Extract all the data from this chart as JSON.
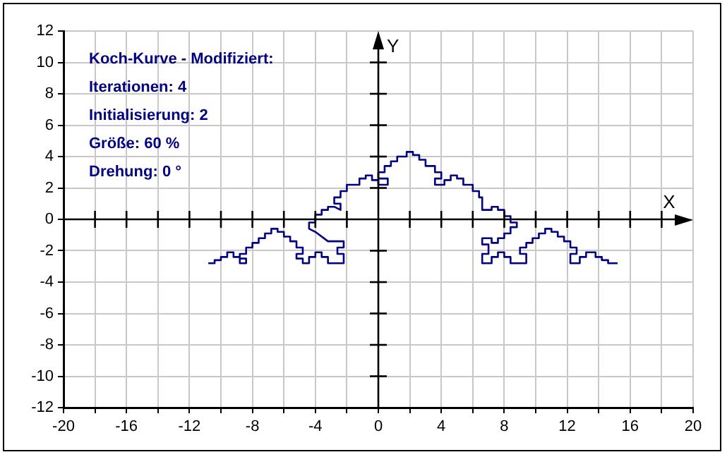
{
  "chart_data": {
    "type": "line",
    "title": "Koch-Kurve - Modifiziert:",
    "xlabel": "X",
    "ylabel": "Y",
    "annotations": [
      "Iterationen: 4",
      "Initialisierung: 2",
      "Größe: 60 %",
      "Drehung: 0 °"
    ],
    "series": [
      {
        "color": "#000080",
        "x": [
          -10.8,
          -10.4,
          -10.4,
          -10,
          -10,
          -9.6,
          -9.6,
          -9.2,
          -9.2,
          -8.8,
          -8.8,
          -8.4,
          -8.4,
          -8.8,
          -8.8,
          -8.4,
          -8.4,
          -8,
          -8,
          -7.6,
          -7.6,
          -7.2,
          -7.2,
          -6.8,
          -6.8,
          -6.4,
          -6.4,
          -6,
          -6,
          -5.6,
          -5.6,
          -5.2,
          -5.2,
          -4.8,
          -4.8,
          -5.2,
          -5.2,
          -4.8,
          -4.8,
          -4.4,
          -4.4,
          -4,
          -4,
          -3.6,
          -3.6,
          -3.2,
          -3.2,
          -2.2,
          -2.2,
          -2.6,
          -2.6,
          -2.2,
          -2.2,
          -3.2,
          -4,
          -4.4,
          -4.4,
          -4,
          -4,
          -3.6,
          -3.6,
          -3.2,
          -3.2,
          -2.8,
          -2.4,
          -2.4,
          -2.8,
          -2.8,
          -2.4,
          -2.4,
          -2,
          -2,
          -1.2,
          -1.2,
          -0.8,
          -0.8,
          -0.4,
          -0.4,
          0,
          0,
          0.6,
          0.6,
          0,
          0,
          0.4,
          0.4,
          0.8,
          0.8,
          1.2,
          1.2,
          1.8,
          1.8,
          2.2,
          2.2,
          2.6,
          2.6,
          3,
          3,
          3.6,
          3.6,
          4,
          4,
          3.6,
          3.6,
          4.2,
          4.2,
          4.6,
          4.6,
          5,
          5,
          5.4,
          5.4,
          6,
          6,
          6.4,
          6.4,
          6.6,
          6.6,
          7.2,
          7.2,
          7.6,
          7.6,
          8,
          8,
          8.4,
          8.4,
          8.8,
          8.8,
          8.4,
          8.4,
          8,
          8,
          7.6,
          7.6,
          7.2,
          7.2,
          6.6,
          6.6,
          7,
          7,
          6.6,
          6.6,
          7.2,
          7.2,
          7.6,
          7.6,
          8,
          8,
          8.4,
          8.4,
          9.4,
          9.4,
          9,
          9,
          9.4,
          9.4,
          9.8,
          9.8,
          10.2,
          10.2,
          10.6,
          10.6,
          11,
          11,
          11.4,
          11.4,
          11.8,
          11.8,
          12.2,
          12.2,
          12.6,
          12.6,
          12.2,
          12.2,
          12.8,
          12.8,
          13.2,
          13.2,
          13.8,
          13.8,
          14.2,
          14.2,
          14.6,
          14.6,
          15.2
        ],
        "values": [
          -2.8,
          -2.8,
          -2.6,
          -2.6,
          -2.4,
          -2.4,
          -2.1,
          -2.1,
          -2.4,
          -2.4,
          -2.8,
          -2.8,
          -2.5,
          -2.5,
          -2.2,
          -2.2,
          -1.8,
          -1.8,
          -1.5,
          -1.5,
          -1.2,
          -1.2,
          -0.9,
          -0.9,
          -0.6,
          -0.6,
          -0.8,
          -0.8,
          -1.1,
          -1.1,
          -1.4,
          -1.4,
          -1.8,
          -1.8,
          -2.2,
          -2.2,
          -2.5,
          -2.5,
          -2.8,
          -2.8,
          -2.4,
          -2.4,
          -2.1,
          -2.1,
          -2.4,
          -2.4,
          -2.8,
          -2.8,
          -2.2,
          -2.2,
          -1.8,
          -1.8,
          -1.4,
          -1.4,
          -0.8,
          -0.6,
          -0.2,
          -0.2,
          0.3,
          0.3,
          0.6,
          0.6,
          0.8,
          0.8,
          0.6,
          1,
          1,
          1.4,
          1.4,
          1.8,
          1.8,
          2.2,
          2.2,
          2.6,
          2.6,
          2.8,
          2.8,
          2.5,
          2.5,
          2.2,
          2.2,
          2.6,
          2.6,
          3,
          3,
          3.4,
          3.4,
          3.7,
          3.7,
          4,
          4,
          4.3,
          4.3,
          4.1,
          4.1,
          3.8,
          3.8,
          3.4,
          3.4,
          3,
          3,
          2.6,
          2.6,
          2.2,
          2.2,
          2.5,
          2.5,
          2.8,
          2.8,
          2.6,
          2.6,
          2.2,
          2.2,
          1.8,
          1.8,
          1.4,
          1.4,
          0.6,
          0.6,
          0.8,
          0.8,
          0.6,
          0.6,
          0.2,
          0.2,
          -0.2,
          -0.2,
          -0.5,
          -0.5,
          -0.9,
          -0.9,
          -1.2,
          -1.2,
          -1.5,
          -1.5,
          -1.2,
          -1.2,
          -1.6,
          -1.6,
          -2.2,
          -2.2,
          -2.8,
          -2.8,
          -2.4,
          -2.4,
          -2.1,
          -2.1,
          -2.4,
          -2.4,
          -2.8,
          -2.8,
          -2.2,
          -2.2,
          -1.8,
          -1.8,
          -1.5,
          -1.5,
          -1.2,
          -1.2,
          -0.9,
          -0.9,
          -0.6,
          -0.6,
          -0.8,
          -0.8,
          -1.1,
          -1.1,
          -1.4,
          -1.4,
          -1.8,
          -1.8,
          -2.2,
          -2.2,
          -2.8,
          -2.8,
          -2.4,
          -2.4,
          -2.1,
          -2.1,
          -2.4,
          -2.4,
          -2.6,
          -2.6,
          -2.8,
          -2.8
        ]
      }
    ],
    "xlim": [
      -20,
      20
    ],
    "xticks": [
      -20,
      {
        "value": -18,
        "label": null
      },
      -16,
      {
        "value": -14,
        "label": null
      },
      -12,
      {
        "value": -10,
        "label": null
      },
      -8,
      {
        "value": -6,
        "label": null
      },
      -4,
      {
        "value": -2,
        "label": null
      },
      0,
      {
        "value": 2,
        "label": null
      },
      4,
      {
        "value": 6,
        "label": null
      },
      8,
      {
        "value": 10,
        "label": null
      },
      12,
      {
        "value": 14,
        "label": null
      },
      16,
      {
        "value": 18,
        "label": null
      },
      20
    ],
    "ylim": [
      -12,
      12
    ],
    "yticks": [
      -12,
      -10,
      -8,
      -6,
      -4,
      -2,
      0,
      2,
      4,
      6,
      8,
      10,
      12
    ],
    "grid": true,
    "legend": false,
    "marker": "none",
    "line_style": "solid"
  }
}
